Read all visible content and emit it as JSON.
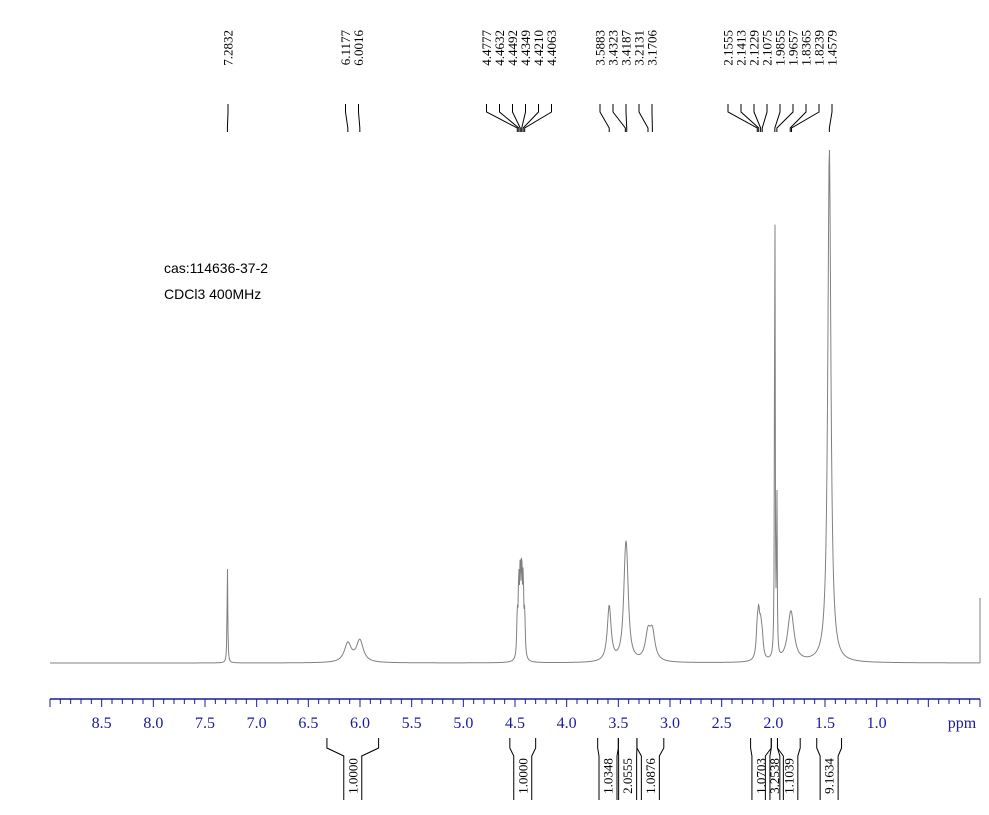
{
  "chart_data": {
    "type": "line",
    "title": "",
    "xlabel": "ppm",
    "ylabel": "",
    "x_reversed": true,
    "xlim": [
      9.0,
      0.0
    ],
    "x_ticks": [
      "8.5",
      "8.0",
      "7.5",
      "7.0",
      "6.5",
      "6.0",
      "5.5",
      "5.0",
      "4.5",
      "4.0",
      "3.5",
      "3.0",
      "2.5",
      "2.0",
      "1.5",
      "1.0"
    ],
    "annotations": [
      "cas:114636-37-2",
      "CDCl3 400MHz"
    ],
    "peak_labels": [
      "7.2832",
      "6.1177",
      "6.0016",
      "4.4777",
      "4.4632",
      "4.4492",
      "4.4349",
      "4.4210",
      "4.4063",
      "3.5883",
      "3.4323",
      "3.4187",
      "3.2131",
      "3.1706",
      "2.1555",
      "2.1413",
      "2.1229",
      "2.1075",
      "1.9855",
      "1.9657",
      "1.8365",
      "1.8239",
      "1.4579"
    ],
    "integrals": [
      {
        "from": 6.32,
        "to": 5.82,
        "value": "1.0000"
      },
      {
        "from": 4.55,
        "to": 4.3,
        "value": "1.0000"
      },
      {
        "from": 3.7,
        "to": 3.5,
        "value": "1.0348"
      },
      {
        "from": 3.5,
        "to": 3.32,
        "value": "2.0555"
      },
      {
        "from": 3.32,
        "to": 3.06,
        "value": "1.0876"
      },
      {
        "from": 2.22,
        "to": 2.02,
        "value": "1.0703"
      },
      {
        "from": 2.02,
        "to": 1.96,
        "value": "3.2538"
      },
      {
        "from": 1.96,
        "to": 1.74,
        "value": "1.1039"
      },
      {
        "from": 1.58,
        "to": 1.34,
        "value": "9.1634"
      }
    ],
    "peaks": [
      {
        "ppm": 7.2832,
        "height": 0.19,
        "width": 0.004
      },
      {
        "ppm": 6.1177,
        "height": 0.036,
        "width": 0.04
      },
      {
        "ppm": 6.0016,
        "height": 0.042,
        "width": 0.04
      },
      {
        "ppm": 4.4777,
        "height": 0.08,
        "width": 0.006
      },
      {
        "ppm": 4.4632,
        "height": 0.14,
        "width": 0.006
      },
      {
        "ppm": 4.4492,
        "height": 0.16,
        "width": 0.006
      },
      {
        "ppm": 4.4349,
        "height": 0.16,
        "width": 0.006
      },
      {
        "ppm": 4.421,
        "height": 0.14,
        "width": 0.006
      },
      {
        "ppm": 4.4063,
        "height": 0.08,
        "width": 0.006
      },
      {
        "ppm": 3.5883,
        "height": 0.106,
        "width": 0.022
      },
      {
        "ppm": 3.4323,
        "height": 0.128,
        "width": 0.022
      },
      {
        "ppm": 3.4187,
        "height": 0.125,
        "width": 0.022
      },
      {
        "ppm": 3.2131,
        "height": 0.05,
        "width": 0.03
      },
      {
        "ppm": 3.1706,
        "height": 0.052,
        "width": 0.03
      },
      {
        "ppm": 2.1555,
        "height": 0.05,
        "width": 0.012
      },
      {
        "ppm": 2.1413,
        "height": 0.07,
        "width": 0.012
      },
      {
        "ppm": 2.1229,
        "height": 0.05,
        "width": 0.012
      },
      {
        "ppm": 2.1075,
        "height": 0.035,
        "width": 0.012
      },
      {
        "ppm": 1.9855,
        "height": 1.0,
        "width": 0.0035
      },
      {
        "ppm": 1.9657,
        "height": 0.33,
        "width": 0.0035
      },
      {
        "ppm": 1.8365,
        "height": 0.05,
        "width": 0.035
      },
      {
        "ppm": 1.8239,
        "height": 0.05,
        "width": 0.035
      },
      {
        "ppm": 1.4579,
        "height": 0.99,
        "width": 0.018
      }
    ],
    "grid": false,
    "line_color": "#808080",
    "axis_color": "#1a1aa0"
  }
}
